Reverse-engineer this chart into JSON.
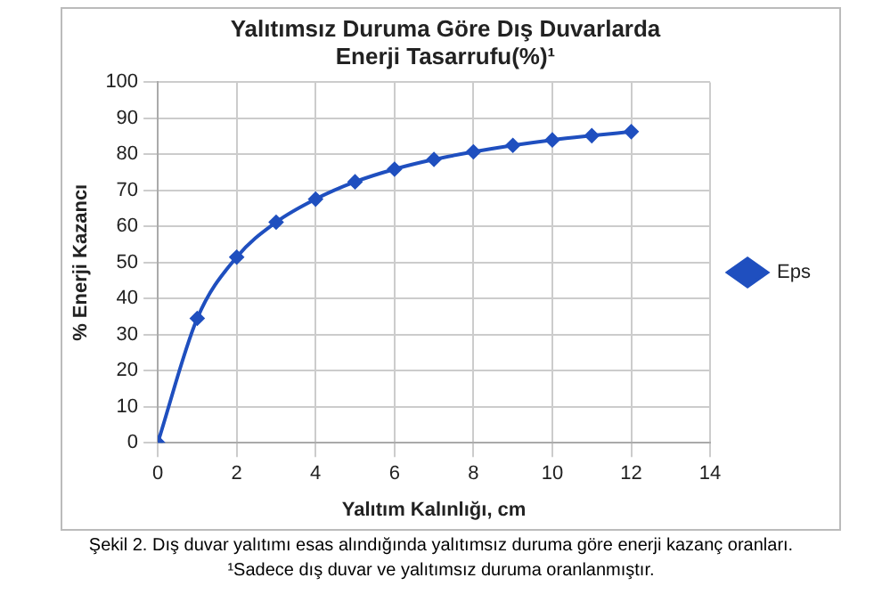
{
  "chart_data": {
    "type": "line",
    "title": "Yalıtımsız Duruma Göre Dış Duvarlarda Enerji Tasarrufu(%)¹",
    "xlabel": "Yalıtım Kalınlığı, cm",
    "ylabel": "% Enerji Kazancı",
    "x": [
      0,
      1,
      2,
      3,
      4,
      5,
      6,
      7,
      8,
      9,
      10,
      11,
      12
    ],
    "series": [
      {
        "name": "Eps",
        "color": "#1f4fbf",
        "values": [
          0,
          34.5,
          51.5,
          61.2,
          67.6,
          72.4,
          75.9,
          78.6,
          80.7,
          82.5,
          84,
          85.2,
          86.3
        ]
      }
    ],
    "xlim": [
      0,
      14
    ],
    "xticks": [
      0,
      2,
      4,
      6,
      8,
      10,
      12,
      14
    ],
    "ylim": [
      0,
      100
    ],
    "yticks": [
      0,
      10,
      20,
      30,
      40,
      50,
      60,
      70,
      80,
      90,
      100
    ],
    "grid": true,
    "legend": "right",
    "marker": "diamond",
    "line_style": "solid",
    "annotations": [
      "Şekil 2. Dış duvar yalıtımı esas alındığında yalıtımsız duruma göre enerji kazanç oranları.",
      "¹Sadece dış duvar ve yalıtımsız duruma oranlanmıştır."
    ]
  }
}
